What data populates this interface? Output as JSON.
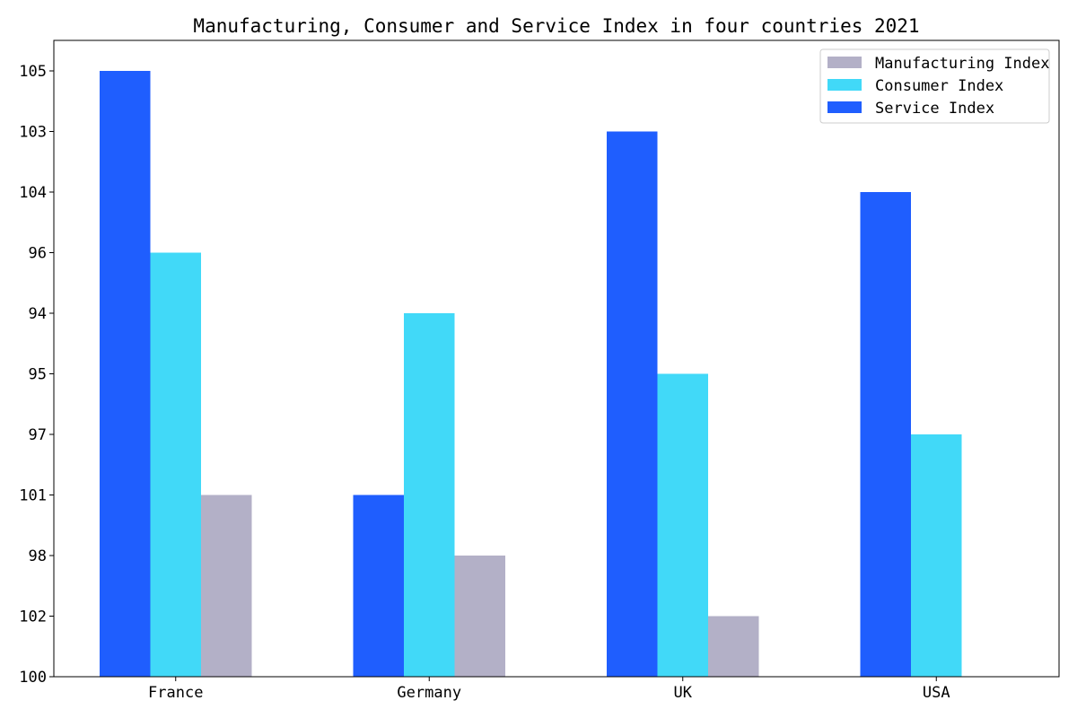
{
  "chart_data": {
    "type": "bar",
    "title": "Manufacturing, Consumer and Service Index in four countries 2021",
    "xlabel": "",
    "ylabel": "",
    "categories": [
      "France",
      "Germany",
      "UK",
      "USA"
    ],
    "y_axis_labels": [
      "100",
      "102",
      "98",
      "101",
      "97",
      "95",
      "94",
      "96",
      "104",
      "103",
      "105"
    ],
    "series": [
      {
        "name": "Service Index",
        "color": "#1f5efe",
        "values": [
          "105",
          "101",
          "103",
          "104"
        ]
      },
      {
        "name": "Consumer Index",
        "color": "#41d9f8",
        "values": [
          "96",
          "94",
          "95",
          "97"
        ]
      },
      {
        "name": "Manufacturing Index",
        "color": "#b3b0c7",
        "values": [
          "101",
          "98",
          "102",
          null
        ]
      }
    ],
    "legend": {
      "placement": "top-right",
      "entries": [
        "Manufacturing Index",
        "Consumer Index",
        "Service Index"
      ]
    },
    "grid": false
  }
}
